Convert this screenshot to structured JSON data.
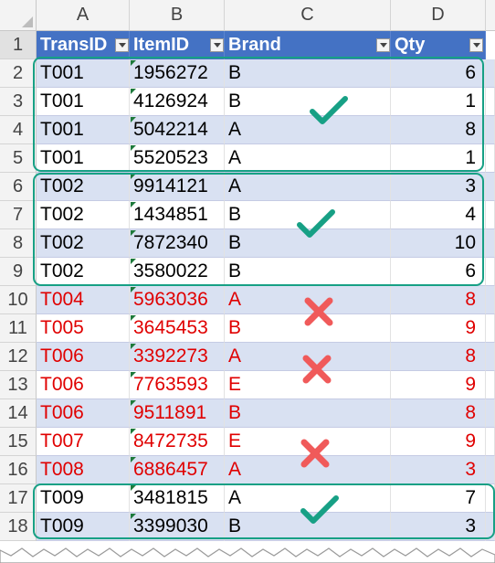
{
  "columns": [
    "A",
    "B",
    "C",
    "D"
  ],
  "table": {
    "headers": {
      "transid": "TransID",
      "itemid": "ItemID",
      "brand": "Brand",
      "qty": "Qty"
    },
    "rows": [
      {
        "n": "2",
        "t": "T001",
        "i": "1956272",
        "b": "B",
        "q": "6",
        "state": "ok"
      },
      {
        "n": "3",
        "t": "T001",
        "i": "4126924",
        "b": "B",
        "q": "1",
        "state": "ok"
      },
      {
        "n": "4",
        "t": "T001",
        "i": "5042214",
        "b": "A",
        "q": "8",
        "state": "ok"
      },
      {
        "n": "5",
        "t": "T001",
        "i": "5520523",
        "b": "A",
        "q": "1",
        "state": "ok"
      },
      {
        "n": "6",
        "t": "T002",
        "i": "9914121",
        "b": "A",
        "q": "3",
        "state": "ok"
      },
      {
        "n": "7",
        "t": "T002",
        "i": "1434851",
        "b": "B",
        "q": "4",
        "state": "ok"
      },
      {
        "n": "8",
        "t": "T002",
        "i": "7872340",
        "b": "B",
        "q": "10",
        "state": "ok"
      },
      {
        "n": "9",
        "t": "T002",
        "i": "3580022",
        "b": "B",
        "q": "6",
        "state": "ok"
      },
      {
        "n": "10",
        "t": "T004",
        "i": "5963036",
        "b": "A",
        "q": "8",
        "state": "bad"
      },
      {
        "n": "11",
        "t": "T005",
        "i": "3645453",
        "b": "B",
        "q": "9",
        "state": "bad"
      },
      {
        "n": "12",
        "t": "T006",
        "i": "3392273",
        "b": "A",
        "q": "8",
        "state": "bad"
      },
      {
        "n": "13",
        "t": "T006",
        "i": "7763593",
        "b": "E",
        "q": "9",
        "state": "bad"
      },
      {
        "n": "14",
        "t": "T006",
        "i": "9511891",
        "b": "B",
        "q": "8",
        "state": "bad"
      },
      {
        "n": "15",
        "t": "T007",
        "i": "8472735",
        "b": "E",
        "q": "9",
        "state": "bad"
      },
      {
        "n": "16",
        "t": "T008",
        "i": "6886457",
        "b": "A",
        "q": "3",
        "state": "bad"
      },
      {
        "n": "17",
        "t": "T009",
        "i": "3481815",
        "b": "A",
        "q": "7",
        "state": "ok"
      },
      {
        "n": "18",
        "t": "T009",
        "i": "3399030",
        "b": "B",
        "q": "3",
        "state": "ok"
      }
    ]
  },
  "row_header_1": "1",
  "colors": {
    "check": "#17a085",
    "cross": "#f05a5a",
    "error_text": "#e00000",
    "header": "#4472c4",
    "band": "#d9e1f2"
  },
  "icons": {
    "valid": "check-icon",
    "invalid": "cross-icon"
  }
}
